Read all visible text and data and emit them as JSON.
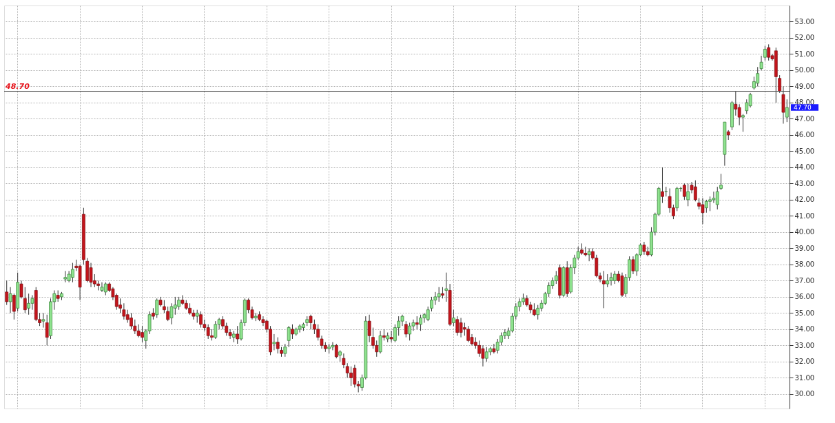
{
  "chart_data": {
    "type": "candlestick",
    "categories": [
      null,
      null,
      null,
      null,
      null,
      null,
      null,
      null,
      null,
      null,
      null,
      null,
      null,
      null,
      null,
      null,
      null,
      null,
      null,
      null,
      null,
      null,
      null,
      null,
      null,
      null,
      null,
      null,
      null,
      null,
      null,
      null,
      null,
      null,
      null,
      null,
      null,
      null,
      null,
      null,
      null,
      null,
      null,
      null,
      null,
      null,
      null,
      null,
      null,
      null,
      null,
      null,
      null,
      null,
      null,
      null,
      null,
      null,
      null,
      null,
      null,
      null,
      null,
      null,
      null,
      null,
      null,
      null,
      null,
      null,
      null,
      null,
      null,
      null,
      null,
      null,
      null,
      null,
      null,
      null,
      null,
      null,
      null,
      null,
      null,
      null,
      null,
      null,
      null,
      null,
      null,
      null,
      null,
      null,
      null,
      null,
      null,
      null,
      null,
      null,
      null,
      null,
      null,
      null,
      null,
      null,
      null,
      null,
      null,
      null,
      null,
      null,
      null,
      null,
      null,
      null,
      null,
      null,
      null,
      null,
      null,
      null,
      null,
      null,
      null,
      null,
      null,
      null,
      null,
      null,
      null,
      null,
      null,
      null,
      null,
      null,
      null,
      null,
      null,
      null,
      null,
      null,
      null,
      null,
      null,
      null,
      null,
      null,
      null,
      null,
      null,
      null,
      null,
      null,
      null,
      null,
      null,
      null,
      null,
      null,
      null,
      null,
      null,
      null,
      null,
      null,
      null,
      null,
      null,
      null,
      null,
      null,
      null,
      null,
      null,
      null,
      null,
      null,
      null,
      null,
      null,
      null,
      null,
      null,
      null,
      null,
      null,
      null,
      null,
      null,
      null,
      null,
      null,
      null,
      null,
      null,
      null,
      null,
      null,
      null,
      null,
      null,
      null,
      null,
      null,
      null,
      null,
      null,
      null,
      null,
      null,
      null,
      null,
      null
    ],
    "ohlc": [
      [
        36.3,
        37,
        35.5,
        35.7
      ],
      [
        35.7,
        36.6,
        35,
        36.2
      ],
      [
        36.1,
        36.2,
        34.6,
        35.1
      ],
      [
        35.3,
        37.5,
        35.1,
        36.9
      ],
      [
        36.8,
        37,
        35.9,
        36
      ],
      [
        35.9,
        36.6,
        35,
        35.2
      ],
      [
        35.3,
        36.2,
        34.9,
        35.6
      ],
      [
        35.6,
        36.1,
        35.2,
        35.9
      ],
      [
        36.4,
        36.6,
        34.5,
        34.6
      ],
      [
        34.6,
        35,
        34.2,
        34.4
      ],
      [
        34.5,
        35,
        34.1,
        34.6
      ],
      [
        34.4,
        34.9,
        33.0,
        33.5
      ],
      [
        33.6,
        35.9,
        33.4,
        35.7
      ],
      [
        35.7,
        36.4,
        35.2,
        36.2
      ],
      [
        36.1,
        36.4,
        35.7,
        35.9
      ],
      [
        36,
        36.3,
        35.8,
        36.2
      ],
      [
        37.1,
        37.6,
        36.9,
        37.2
      ],
      [
        37.0,
        37.6,
        36.9,
        37.4
      ],
      [
        37.2,
        38.1,
        36.9,
        37.7
      ],
      [
        37.9,
        38.3,
        37.6,
        37.8
      ],
      [
        37.9,
        38,
        35.8,
        36.6
      ],
      [
        41.1,
        41.5,
        38.0,
        38.3
      ],
      [
        38.2,
        38.4,
        36.9,
        37.0
      ],
      [
        37.8,
        38.1,
        36.6,
        36.9
      ],
      [
        37.0,
        37.4,
        36.6,
        36.8
      ],
      [
        36.8,
        37.0,
        36.4,
        36.7
      ],
      [
        36.4,
        36.9,
        36.3,
        36.6
      ],
      [
        36.3,
        36.9,
        36.1,
        36.8
      ],
      [
        36.8,
        36.9,
        36.3,
        36.4
      ],
      [
        36.5,
        36.6,
        35.8,
        36.0
      ],
      [
        36.1,
        36.2,
        35.2,
        35.4
      ],
      [
        35.5,
        35.9,
        35.0,
        35.3
      ],
      [
        35.2,
        35.6,
        34.6,
        34.8
      ],
      [
        34.9,
        35.2,
        34.4,
        34.6
      ],
      [
        34.7,
        35.0,
        34.0,
        34.2
      ],
      [
        34.2,
        34.6,
        33.7,
        33.9
      ],
      [
        33.9,
        34.3,
        33.5,
        33.6
      ],
      [
        33.8,
        34.2,
        33.2,
        33.5
      ],
      [
        33.3,
        34.0,
        32.8,
        33.9
      ],
      [
        33.9,
        35.1,
        33.7,
        34.9
      ],
      [
        35.0,
        35.3,
        34.6,
        34.8
      ],
      [
        34.9,
        35.9,
        34.7,
        35.8
      ],
      [
        35.8,
        36.0,
        35.4,
        35.5
      ],
      [
        35.4,
        35.8,
        35.0,
        35.2
      ],
      [
        35.1,
        35.4,
        34.5,
        34.6
      ],
      [
        34.7,
        35.6,
        34.3,
        35.4
      ],
      [
        35.3,
        36.0,
        34.9,
        35.5
      ],
      [
        35.4,
        36.0,
        35.2,
        35.8
      ],
      [
        35.8,
        36.1,
        35.5,
        35.6
      ],
      [
        35.6,
        35.8,
        35.2,
        35.3
      ],
      [
        35.3,
        35.6,
        34.9,
        35.0
      ],
      [
        35.0,
        35.2,
        34.6,
        34.8
      ],
      [
        34.8,
        35.2,
        34.4,
        35.0
      ],
      [
        34.9,
        35.1,
        34.1,
        34.3
      ],
      [
        34.3,
        34.6,
        33.9,
        34.1
      ],
      [
        34.1,
        34.3,
        33.4,
        33.6
      ],
      [
        33.6,
        34.0,
        33.3,
        33.5
      ],
      [
        33.5,
        34.5,
        33.4,
        34.3
      ],
      [
        34.3,
        34.7,
        34.0,
        34.6
      ],
      [
        34.6,
        34.8,
        34.0,
        34.2
      ],
      [
        34.2,
        34.4,
        33.6,
        33.8
      ],
      [
        33.8,
        34.0,
        33.4,
        33.6
      ],
      [
        33.5,
        33.9,
        33.2,
        33.7
      ],
      [
        33.7,
        34.2,
        33.1,
        33.4
      ],
      [
        33.4,
        34.6,
        33.3,
        34.4
      ],
      [
        34.4,
        35.9,
        34.2,
        35.8
      ],
      [
        35.8,
        35.9,
        35.0,
        35.2
      ],
      [
        35.2,
        35.4,
        34.6,
        34.7
      ],
      [
        34.7,
        35.0,
        34.5,
        34.8
      ],
      [
        34.9,
        35.1,
        34.5,
        34.6
      ],
      [
        34.6,
        34.8,
        34.2,
        34.4
      ],
      [
        34.5,
        34.6,
        33.8,
        34.0
      ],
      [
        34.0,
        34.2,
        32.4,
        32.6
      ],
      [
        33.1,
        33.7,
        32.7,
        33.2
      ],
      [
        33.2,
        33.5,
        32.5,
        32.8
      ],
      [
        32.7,
        32.9,
        32.3,
        32.5
      ],
      [
        32.5,
        33.1,
        32.3,
        32.9
      ],
      [
        33.3,
        34.2,
        32.9,
        34.1
      ],
      [
        34.0,
        34.3,
        33.4,
        33.7
      ],
      [
        33.7,
        34.1,
        33.6,
        34.0
      ],
      [
        34.0,
        34.3,
        33.8,
        34.2
      ],
      [
        34.1,
        34.4,
        33.9,
        34.3
      ],
      [
        34.4,
        34.8,
        34.2,
        34.6
      ],
      [
        34.8,
        34.9,
        34.0,
        34.4
      ],
      [
        34.3,
        34.6,
        33.7,
        34.0
      ],
      [
        34.0,
        34.3,
        33.3,
        33.5
      ],
      [
        33.4,
        33.6,
        32.8,
        33.0
      ],
      [
        33.0,
        33.2,
        32.6,
        32.8
      ],
      [
        32.8,
        33.1,
        32.5,
        32.9
      ],
      [
        32.9,
        33.2,
        32.7,
        33.0
      ],
      [
        33.0,
        33.1,
        32.2,
        32.3
      ],
      [
        32.4,
        32.7,
        32.0,
        32.6
      ],
      [
        32.2,
        32.5,
        31.6,
        31.8
      ],
      [
        31.7,
        31.9,
        31.0,
        31.3
      ],
      [
        31.3,
        31.7,
        30.5,
        31.0
      ],
      [
        31.6,
        31.8,
        30.4,
        30.6
      ],
      [
        30.6,
        30.8,
        30.1,
        30.5
      ],
      [
        30.4,
        31.2,
        30.2,
        31.0
      ],
      [
        31.0,
        34.8,
        30.9,
        34.5
      ],
      [
        34.5,
        34.9,
        33.2,
        33.6
      ],
      [
        33.5,
        34.1,
        32.8,
        33.0
      ],
      [
        33.0,
        33.3,
        32.3,
        32.6
      ],
      [
        32.6,
        33.9,
        32.5,
        33.6
      ],
      [
        33.6,
        34.0,
        33.3,
        33.5
      ],
      [
        33.4,
        33.8,
        33.2,
        33.6
      ],
      [
        33.5,
        33.9,
        33.2,
        33.4
      ],
      [
        33.3,
        34.3,
        33.2,
        34.1
      ],
      [
        34.1,
        34.8,
        33.6,
        34.5
      ],
      [
        34.5,
        34.9,
        34.2,
        34.8
      ],
      [
        34.3,
        34.5,
        33.5,
        33.7
      ],
      [
        33.7,
        34.4,
        33.3,
        34.2
      ],
      [
        34.2,
        34.6,
        33.9,
        34.4
      ],
      [
        34.4,
        34.8,
        34.0,
        34.3
      ],
      [
        34.3,
        34.9,
        33.9,
        34.7
      ],
      [
        34.7,
        35.0,
        34.4,
        34.9
      ],
      [
        34.6,
        35.4,
        34.5,
        35.2
      ],
      [
        35.3,
        36.0,
        35.1,
        35.8
      ],
      [
        35.8,
        36.3,
        35.5,
        36.0
      ],
      [
        36.0,
        36.6,
        35.7,
        36.2
      ],
      [
        36.2,
        36.6,
        35.9,
        36.1
      ],
      [
        36.4,
        37.5,
        35.7,
        36.5
      ],
      [
        36.4,
        36.8,
        34.2,
        34.3
      ],
      [
        34.4,
        35.2,
        34.2,
        34.7
      ],
      [
        34.6,
        34.8,
        33.6,
        33.8
      ],
      [
        34.4,
        34.7,
        33.5,
        33.8
      ],
      [
        34.1,
        34.4,
        33.6,
        34.0
      ],
      [
        34.0,
        34.2,
        33.2,
        33.3
      ],
      [
        33.5,
        33.7,
        33.0,
        33.1
      ],
      [
        33.2,
        33.5,
        32.8,
        33.0
      ],
      [
        33.0,
        33.3,
        32.3,
        32.5
      ],
      [
        32.8,
        33.0,
        31.7,
        32.2
      ],
      [
        32.2,
        32.9,
        32.0,
        32.6
      ],
      [
        32.6,
        32.9,
        32.4,
        32.8
      ],
      [
        32.8,
        33.1,
        32.5,
        32.6
      ],
      [
        32.7,
        33.4,
        32.5,
        33.2
      ],
      [
        33.2,
        33.8,
        33.0,
        33.6
      ],
      [
        33.6,
        34.0,
        33.4,
        33.8
      ],
      [
        33.6,
        34.1,
        33.4,
        33.9
      ],
      [
        33.9,
        35.0,
        33.8,
        34.8
      ],
      [
        34.8,
        35.6,
        34.6,
        35.4
      ],
      [
        35.4,
        35.9,
        35.1,
        35.7
      ],
      [
        35.7,
        36.2,
        35.5,
        35.9
      ],
      [
        35.9,
        36.1,
        35.4,
        35.5
      ],
      [
        35.5,
        35.7,
        35.0,
        35.2
      ],
      [
        35.2,
        35.6,
        34.8,
        34.9
      ],
      [
        34.9,
        35.5,
        34.6,
        35.3
      ],
      [
        35.3,
        35.8,
        35.1,
        35.6
      ],
      [
        35.6,
        36.3,
        35.5,
        36.2
      ],
      [
        36.2,
        36.9,
        36.0,
        36.7
      ],
      [
        36.7,
        37.2,
        36.5,
        37.0
      ],
      [
        37.0,
        37.6,
        36.8,
        37.3
      ],
      [
        37.8,
        38.0,
        35.9,
        36.1
      ],
      [
        36.1,
        37.9,
        36.0,
        37.8
      ],
      [
        37.8,
        38.2,
        36.0,
        36.2
      ],
      [
        36.3,
        38.0,
        36.2,
        37.8
      ],
      [
        37.8,
        38.6,
        37.4,
        38.4
      ],
      [
        38.4,
        39.1,
        38.3,
        38.8
      ],
      [
        38.9,
        39.3,
        38.6,
        38.7
      ],
      [
        38.7,
        39.1,
        38.5,
        38.6
      ],
      [
        38.6,
        39.0,
        38.2,
        38.8
      ],
      [
        38.8,
        39.0,
        38.3,
        38.4
      ],
      [
        38.4,
        38.6,
        37.2,
        37.3
      ],
      [
        37.3,
        37.5,
        36.9,
        37.1
      ],
      [
        37.0,
        37.6,
        35.3,
        36.8
      ],
      [
        36.8,
        37.4,
        36.6,
        37.0
      ],
      [
        37.0,
        37.5,
        36.7,
        37.2
      ],
      [
        37.0,
        37.6,
        36.8,
        37.4
      ],
      [
        37.4,
        37.6,
        36.9,
        37.0
      ],
      [
        37.3,
        37.5,
        36.0,
        36.1
      ],
      [
        36.2,
        37.4,
        36.0,
        37.2
      ],
      [
        37.2,
        38.5,
        37.0,
        38.3
      ],
      [
        38.3,
        38.5,
        37.4,
        37.6
      ],
      [
        37.6,
        38.7,
        37.3,
        38.6
      ],
      [
        38.6,
        39.3,
        38.5,
        39.2
      ],
      [
        39.2,
        39.4,
        38.6,
        38.8
      ],
      [
        38.8,
        39.1,
        38.5,
        38.6
      ],
      [
        38.6,
        40.3,
        38.5,
        40.0
      ],
      [
        40.0,
        41.2,
        39.8,
        41.1
      ],
      [
        41.1,
        42.8,
        41.0,
        42.7
      ],
      [
        42.5,
        44.0,
        41.8,
        42.2
      ],
      [
        42.5,
        42.8,
        42.2,
        42.5
      ],
      [
        42.2,
        42.7,
        41.2,
        41.5
      ],
      [
        41.5,
        41.7,
        40.8,
        41.0
      ],
      [
        41.5,
        42.8,
        41.3,
        42.7
      ],
      [
        42.7,
        42.8,
        42.5,
        42.7
      ],
      [
        42.9,
        43.0,
        42.0,
        42.2
      ],
      [
        42.0,
        43.0,
        41.6,
        42.5
      ],
      [
        42.9,
        43.1,
        42.4,
        42.6
      ],
      [
        42.8,
        43.2,
        41.9,
        42.0
      ],
      [
        41.8,
        42.1,
        41.4,
        41.6
      ],
      [
        41.7,
        42.1,
        40.5,
        41.2
      ],
      [
        41.5,
        42.0,
        41.2,
        41.9
      ],
      [
        41.9,
        42.2,
        41.3,
        42.0
      ],
      [
        42.0,
        42.5,
        41.8,
        42.1
      ],
      [
        41.7,
        42.8,
        41.4,
        42.5
      ],
      [
        42.7,
        43.6,
        42.6,
        42.9
      ],
      [
        44.8,
        46.8,
        44.1,
        46.8
      ],
      [
        46.2,
        46.3,
        45.7,
        46.0
      ],
      [
        46.5,
        48.1,
        46.3,
        48.0
      ],
      [
        47.9,
        48.7,
        47.2,
        47.6
      ],
      [
        47.7,
        47.9,
        46.6,
        47.1
      ],
      [
        47.1,
        47.3,
        46.2,
        47.2
      ],
      [
        47.5,
        48.2,
        47.3,
        48.0
      ],
      [
        47.8,
        48.6,
        47.7,
        48.5
      ],
      [
        48.9,
        49.6,
        48.8,
        49.3
      ],
      [
        49.2,
        50.2,
        49.0,
        49.8
      ],
      [
        50.1,
        50.9,
        50.0,
        50.5
      ],
      [
        50.8,
        51.5,
        50.6,
        51.3
      ],
      [
        51.4,
        51.6,
        50.6,
        50.8
      ],
      [
        50.9,
        51.0,
        50.6,
        50.7
      ],
      [
        51.2,
        51.4,
        48.0,
        49.6
      ],
      [
        49.5,
        49.7,
        48.6,
        48.7
      ],
      [
        48.5,
        49.0,
        46.7,
        47.4
      ],
      [
        47.1,
        48.2,
        46.8,
        47.7
      ]
    ],
    "ylim": [
      29.1,
      54.0
    ],
    "yticks": [
      {
        "value": 30,
        "label": "30.00"
      },
      {
        "value": 31,
        "label": "31.00"
      },
      {
        "value": 32,
        "label": "32.00"
      },
      {
        "value": 33,
        "label": "33.00"
      },
      {
        "value": 34,
        "label": "34.00"
      },
      {
        "value": 35,
        "label": "35.00"
      },
      {
        "value": 36,
        "label": "36.00"
      },
      {
        "value": 37,
        "label": "37.00"
      },
      {
        "value": 38,
        "label": "38.00"
      },
      {
        "value": 39,
        "label": "39.00"
      },
      {
        "value": 40,
        "label": "40.00"
      },
      {
        "value": 41,
        "label": "41.00"
      },
      {
        "value": 42,
        "label": "42.00"
      },
      {
        "value": 43,
        "label": "43.00"
      },
      {
        "value": 44,
        "label": "44.00"
      },
      {
        "value": 45,
        "label": "45.00"
      },
      {
        "value": 46,
        "label": "46.00"
      },
      {
        "value": 47,
        "label": "47.00"
      },
      {
        "value": 48,
        "label": "48.00"
      },
      {
        "value": 49,
        "label": "49.00"
      },
      {
        "value": 50,
        "label": "50.00"
      },
      {
        "value": 51,
        "label": "51.00"
      },
      {
        "value": 52,
        "label": "52.00"
      },
      {
        "value": 53,
        "label": "53.00"
      }
    ],
    "grid": true,
    "tick_labels": "y",
    "ref_lines": [
      {
        "axis": "y",
        "value": 48.7,
        "label": "48.70",
        "color": "#555555"
      }
    ],
    "annotations": [
      "47.70"
    ]
  }
}
